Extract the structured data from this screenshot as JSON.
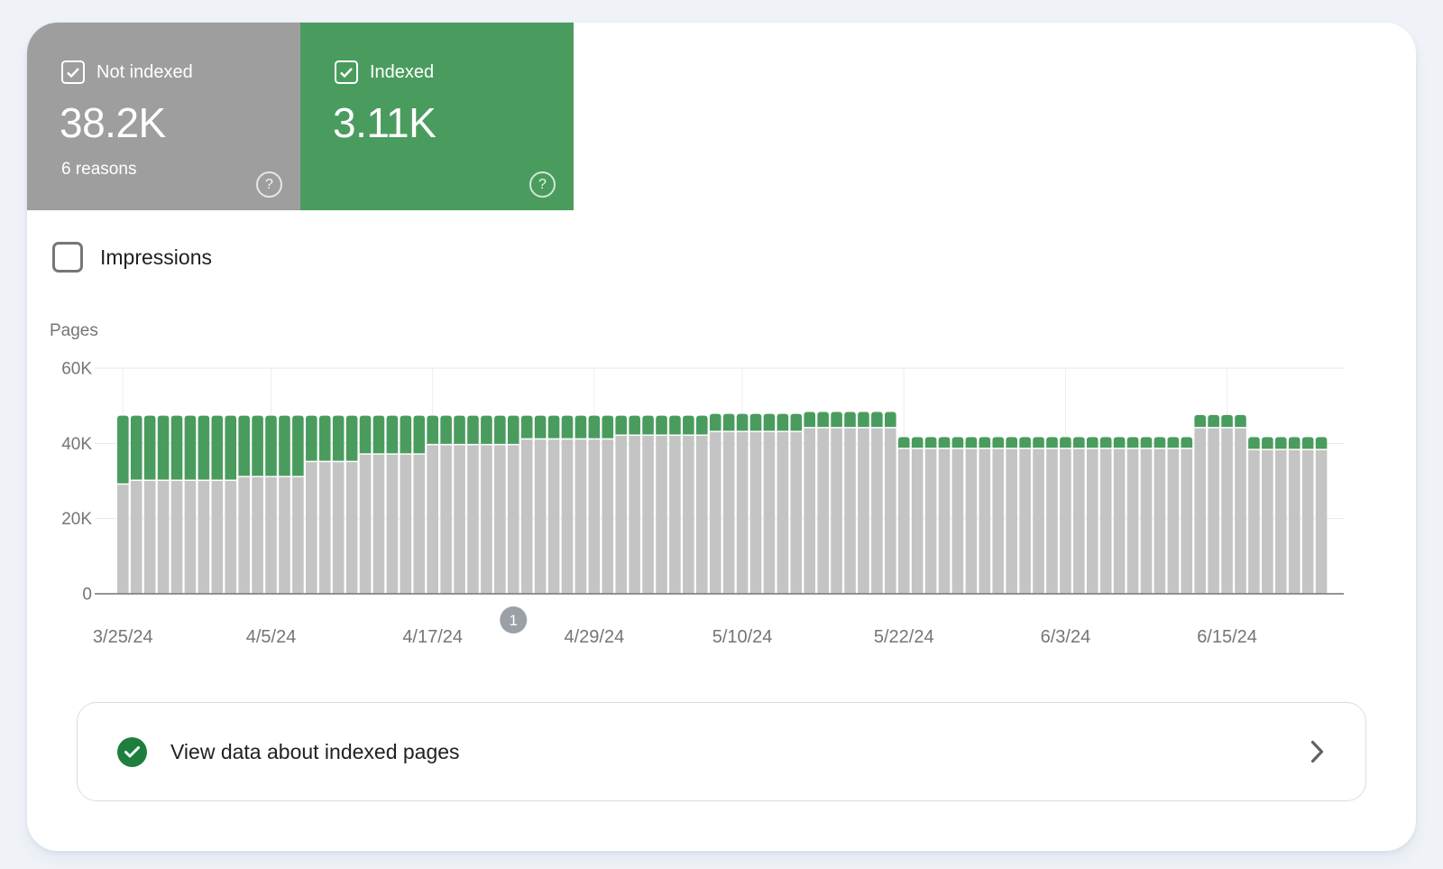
{
  "summary_cards": {
    "help_glyph": "?",
    "not_indexed": {
      "label": "Not indexed",
      "value": "38.2K",
      "sublabel": "6 reasons",
      "color": "#9e9e9e",
      "checked": true
    },
    "indexed": {
      "label": "Indexed",
      "value": "3.11K",
      "color": "#4a9c5e",
      "checked": true
    }
  },
  "impressions_toggle": {
    "label": "Impressions",
    "checked": false
  },
  "chart_data": {
    "type": "bar",
    "stacked": true,
    "ylabel": "Pages",
    "ylim": [
      0,
      60000
    ],
    "yticks": [
      "0",
      "20K",
      "40K",
      "60K"
    ],
    "grid": true,
    "x_tick_labels": [
      "3/25/24",
      "4/5/24",
      "4/17/24",
      "4/29/24",
      "5/10/24",
      "5/22/24",
      "6/3/24",
      "6/15/24"
    ],
    "x_tick_indices": [
      0,
      11,
      23,
      35,
      46,
      58,
      70,
      82
    ],
    "dates": [
      "3/25/24",
      "3/26/24",
      "3/27/24",
      "3/28/24",
      "3/29/24",
      "3/30/24",
      "3/31/24",
      "4/1/24",
      "4/2/24",
      "4/3/24",
      "4/4/24",
      "4/5/24",
      "4/6/24",
      "4/7/24",
      "4/8/24",
      "4/9/24",
      "4/10/24",
      "4/11/24",
      "4/12/24",
      "4/13/24",
      "4/14/24",
      "4/15/24",
      "4/16/24",
      "4/17/24",
      "4/18/24",
      "4/19/24",
      "4/20/24",
      "4/21/24",
      "4/22/24",
      "4/23/24",
      "4/24/24",
      "4/25/24",
      "4/26/24",
      "4/27/24",
      "4/28/24",
      "4/29/24",
      "4/30/24",
      "5/1/24",
      "5/2/24",
      "5/3/24",
      "5/4/24",
      "5/5/24",
      "5/6/24",
      "5/7/24",
      "5/8/24",
      "5/9/24",
      "5/10/24",
      "5/11/24",
      "5/12/24",
      "5/13/24",
      "5/14/24",
      "5/15/24",
      "5/16/24",
      "5/17/24",
      "5/18/24",
      "5/19/24",
      "5/20/24",
      "5/21/24",
      "5/22/24",
      "5/23/24",
      "5/24/24",
      "5/25/24",
      "5/26/24",
      "5/27/24",
      "5/28/24",
      "5/29/24",
      "5/30/24",
      "5/31/24",
      "6/1/24",
      "6/2/24",
      "6/3/24",
      "6/4/24",
      "6/5/24",
      "6/6/24",
      "6/7/24",
      "6/8/24",
      "6/9/24",
      "6/10/24",
      "6/11/24",
      "6/12/24",
      "6/13/24",
      "6/14/24",
      "6/15/24",
      "6/16/24",
      "6/17/24",
      "6/18/24",
      "6/19/24",
      "6/20/24",
      "6/21/24",
      "6/22/24"
    ],
    "series": [
      {
        "name": "Not indexed",
        "color": "#c4c4c4",
        "values": [
          29000,
          30000,
          30000,
          30000,
          30000,
          30000,
          30000,
          30000,
          30000,
          31000,
          31000,
          31000,
          31000,
          31000,
          35000,
          35000,
          35000,
          35000,
          37000,
          37000,
          37000,
          37000,
          37000,
          39500,
          39500,
          39500,
          39500,
          39500,
          39500,
          39500,
          41000,
          41000,
          41000,
          41000,
          41000,
          41000,
          41000,
          42000,
          42000,
          42000,
          42000,
          42000,
          42000,
          42000,
          43000,
          43000,
          43000,
          43000,
          43000,
          43000,
          43000,
          44000,
          44000,
          44000,
          44000,
          44000,
          44000,
          44000,
          38500,
          38500,
          38500,
          38500,
          38500,
          38500,
          38500,
          38500,
          38500,
          38500,
          38500,
          38500,
          38500,
          38500,
          38500,
          38500,
          38500,
          38500,
          38500,
          38500,
          38500,
          38500,
          44000,
          44000,
          44000,
          44000,
          38200,
          38200,
          38200,
          38200,
          38200,
          38200
        ]
      },
      {
        "name": "Indexed",
        "color": "#4a9c5e",
        "values": [
          18000,
          17000,
          17000,
          17000,
          17000,
          17000,
          17000,
          17000,
          17000,
          16000,
          16000,
          16000,
          16000,
          16000,
          12000,
          12000,
          12000,
          12000,
          10000,
          10000,
          10000,
          10000,
          10000,
          7500,
          7500,
          7500,
          7500,
          7500,
          7500,
          7500,
          6000,
          6000,
          6000,
          6000,
          6000,
          6000,
          6000,
          5000,
          5000,
          5000,
          5000,
          5000,
          5000,
          5000,
          4500,
          4500,
          4500,
          4500,
          4500,
          4500,
          4500,
          4000,
          4000,
          4000,
          4000,
          4000,
          4000,
          4000,
          2800,
          2800,
          2800,
          2800,
          2800,
          2800,
          2800,
          2800,
          2800,
          2800,
          2800,
          2800,
          2800,
          2800,
          2800,
          2800,
          2800,
          2800,
          2800,
          2800,
          2800,
          2800,
          3200,
          3200,
          3200,
          3200,
          3110,
          3110,
          3110,
          3110,
          3110,
          3110
        ]
      }
    ],
    "annotation": {
      "label": "1",
      "bar_index": 29
    }
  },
  "footer_link": {
    "label": "View data about indexed pages"
  }
}
